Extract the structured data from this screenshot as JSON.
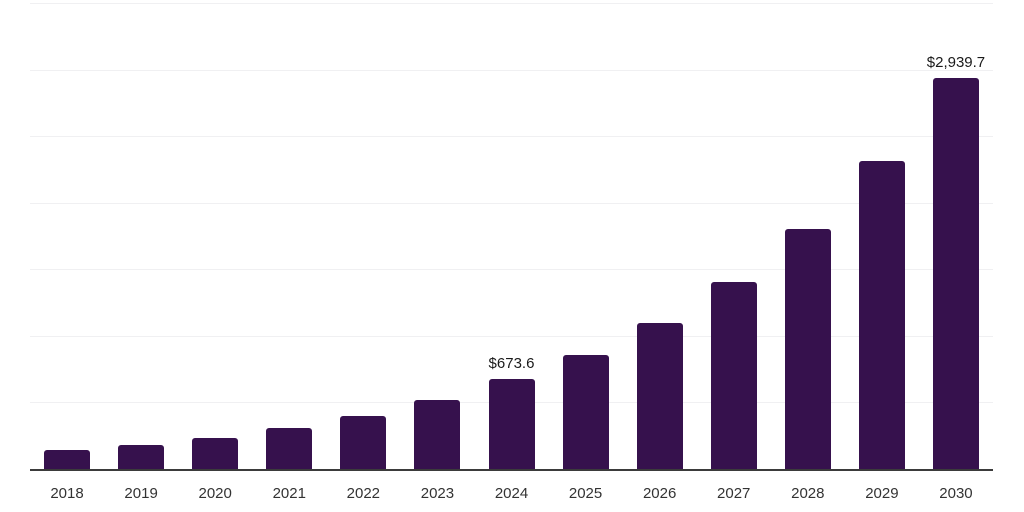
{
  "chart_data": {
    "type": "bar",
    "title": "",
    "xlabel": "",
    "ylabel": "",
    "categories": [
      "2018",
      "2019",
      "2020",
      "2021",
      "2022",
      "2023",
      "2024",
      "2025",
      "2026",
      "2027",
      "2028",
      "2029",
      "2030"
    ],
    "values": [
      140,
      178,
      230,
      305,
      400,
      515,
      673.6,
      860,
      1100,
      1405,
      1805,
      2310,
      2939.7
    ],
    "point_labels": [
      "",
      "",
      "",
      "",
      "",
      "",
      "$673.6",
      "",
      "",
      "",
      "",
      "",
      "$2,939.7"
    ],
    "ylim": [
      0,
      3500
    ],
    "gridline_step": 500,
    "grid": "horizontal",
    "legend": "none",
    "y_axis_labels_visible": false
  },
  "colors": {
    "bar": "#36114d",
    "gridline": "#f0f0f2",
    "axis_line": "#3b3b3b",
    "tick_label": "#333333",
    "data_label": "#1a1a1a",
    "background": "#ffffff"
  }
}
